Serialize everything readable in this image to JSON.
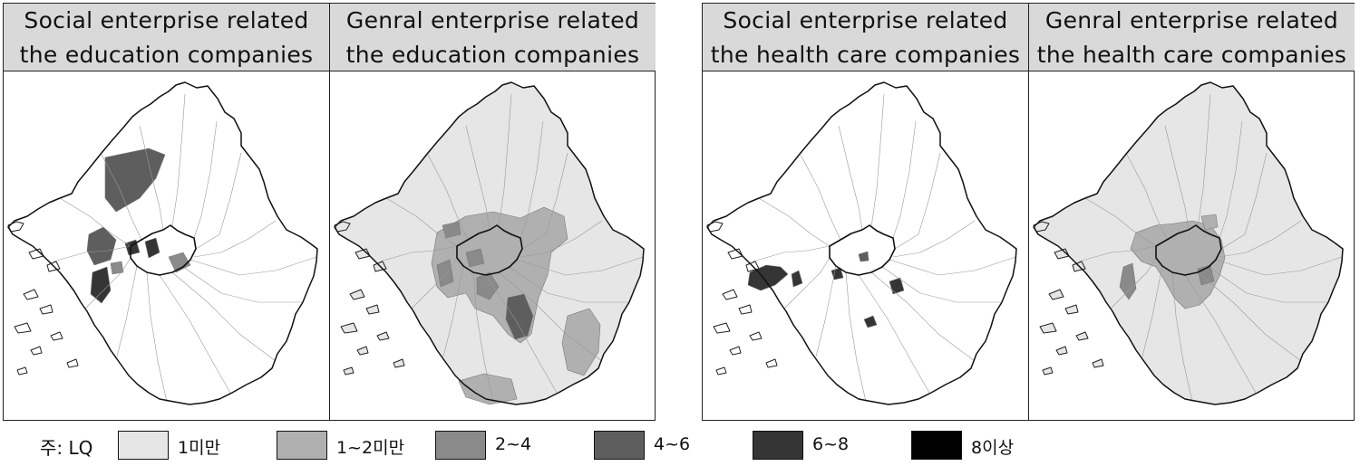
{
  "panels": [
    {
      "title_line1": "Social enterprise related",
      "title_line2": "the education companies"
    },
    {
      "title_line1": "Genral enterprise related",
      "title_line2": "the education companies"
    },
    {
      "title_line1": "Social enterprise related",
      "title_line2": "the health care companies"
    },
    {
      "title_line1": "Genral enterprise related",
      "title_line2": "the health care companies"
    }
  ],
  "legend": {
    "title": "주: LQ",
    "classes": [
      {
        "label": "1미만",
        "color": "#e6e6e6"
      },
      {
        "label": "1~2미만",
        "color": "#b0b0b0"
      },
      {
        "label": "2~4",
        "color": "#8a8a8a"
      },
      {
        "label": "4~6",
        "color": "#5e5e5e"
      },
      {
        "label": "6~8",
        "color": "#353535"
      },
      {
        "label": "8이상",
        "color": "#000000"
      }
    ]
  },
  "colors": {
    "empty_region": "#ffffff",
    "lt1": "#e6e6e6",
    "c1_2": "#b0b0b0",
    "c2_4": "#8a8a8a",
    "c4_6": "#5e5e5e",
    "c6_8": "#353535",
    "ge8": "#000000"
  }
}
